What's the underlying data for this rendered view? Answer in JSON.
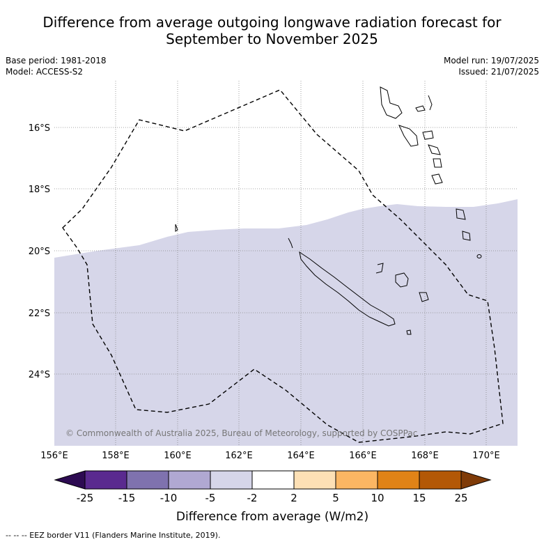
{
  "title_line1": "Difference from average outgoing longwave radiation forecast for",
  "title_line2": "September to November 2025",
  "base_period": "Base period: 1981-2018",
  "model": "Model: ACCESS-S2",
  "model_run": "Model run: 19/07/2025",
  "issued": "Issued: 21/07/2025",
  "copyright": "© Commonwealth of Australia 2025, Bureau of Meteorology, supported by COSPPac",
  "footnote": "--  --  -- EEZ border V11 (Flanders Marine Institute, 2019).",
  "map": {
    "lon_labels": [
      "156°E",
      "158°E",
      "160°E",
      "162°E",
      "164°E",
      "166°E",
      "168°E",
      "170°E"
    ],
    "lat_labels": [
      "16°S",
      "18°S",
      "20°S",
      "22°S",
      "24°S"
    ],
    "anomaly_fill_color": "#d6d6e9",
    "anomaly_category": "-5 to -2"
  },
  "colorbar": {
    "label": "Difference from average (W/m2)",
    "ticks": [
      "-25",
      "-15",
      "-10",
      "-5",
      "-2",
      "2",
      "5",
      "10",
      "15",
      "25"
    ],
    "colors": [
      "#2d0b52",
      "#5a2a8f",
      "#7f72ae",
      "#b0a8d2",
      "#d6d6e9",
      "#ffffff",
      "#fde0b5",
      "#fbb663",
      "#e08317",
      "#b35806",
      "#7f3b08"
    ]
  }
}
